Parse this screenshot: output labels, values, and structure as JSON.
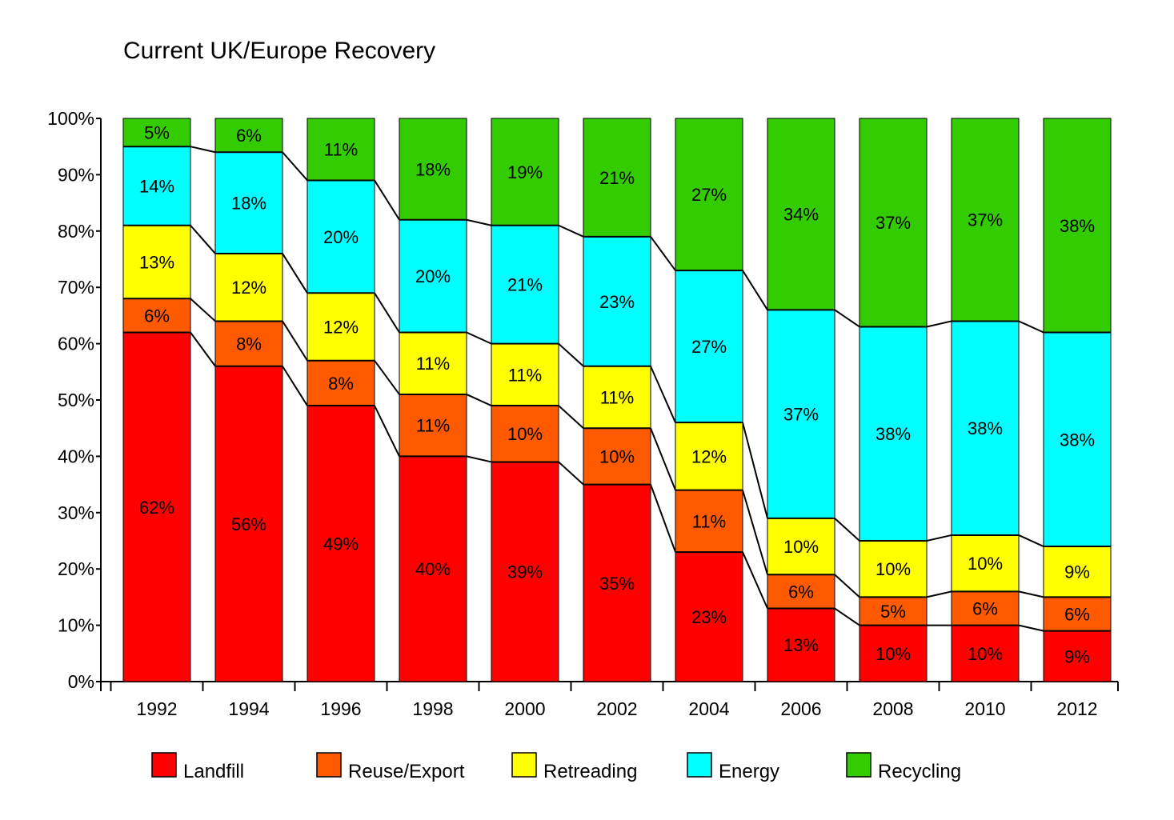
{
  "chart_data": {
    "type": "bar",
    "stacked": true,
    "title": "Current UK/Europe Recovery",
    "xlabel": "",
    "ylabel": "",
    "ylim": [
      0,
      100
    ],
    "yticks": [
      "0%",
      "10%",
      "20%",
      "30%",
      "40%",
      "50%",
      "60%",
      "70%",
      "80%",
      "90%",
      "100%"
    ],
    "categories": [
      "1992",
      "1994",
      "1996",
      "1998",
      "2000",
      "2002",
      "2004",
      "2006",
      "2008",
      "2010",
      "2012"
    ],
    "series": [
      {
        "name": "Landfill",
        "color": "#ff0000",
        "values": [
          62,
          56,
          49,
          40,
          39,
          35,
          23,
          13,
          10,
          10,
          9
        ]
      },
      {
        "name": "Reuse/Export",
        "color": "#ff5a00",
        "values": [
          6,
          8,
          8,
          11,
          10,
          10,
          11,
          6,
          5,
          6,
          6
        ]
      },
      {
        "name": "Retreading",
        "color": "#ffff00",
        "values": [
          13,
          12,
          12,
          11,
          11,
          11,
          12,
          10,
          10,
          10,
          9
        ]
      },
      {
        "name": "Energy",
        "color": "#00ffff",
        "values": [
          14,
          18,
          20,
          20,
          21,
          23,
          27,
          37,
          38,
          38,
          38
        ]
      },
      {
        "name": "Recycling",
        "color": "#33cc00",
        "values": [
          5,
          6,
          11,
          18,
          19,
          21,
          27,
          34,
          37,
          37,
          38
        ]
      }
    ],
    "grid": false,
    "legend_position": "bottom"
  }
}
